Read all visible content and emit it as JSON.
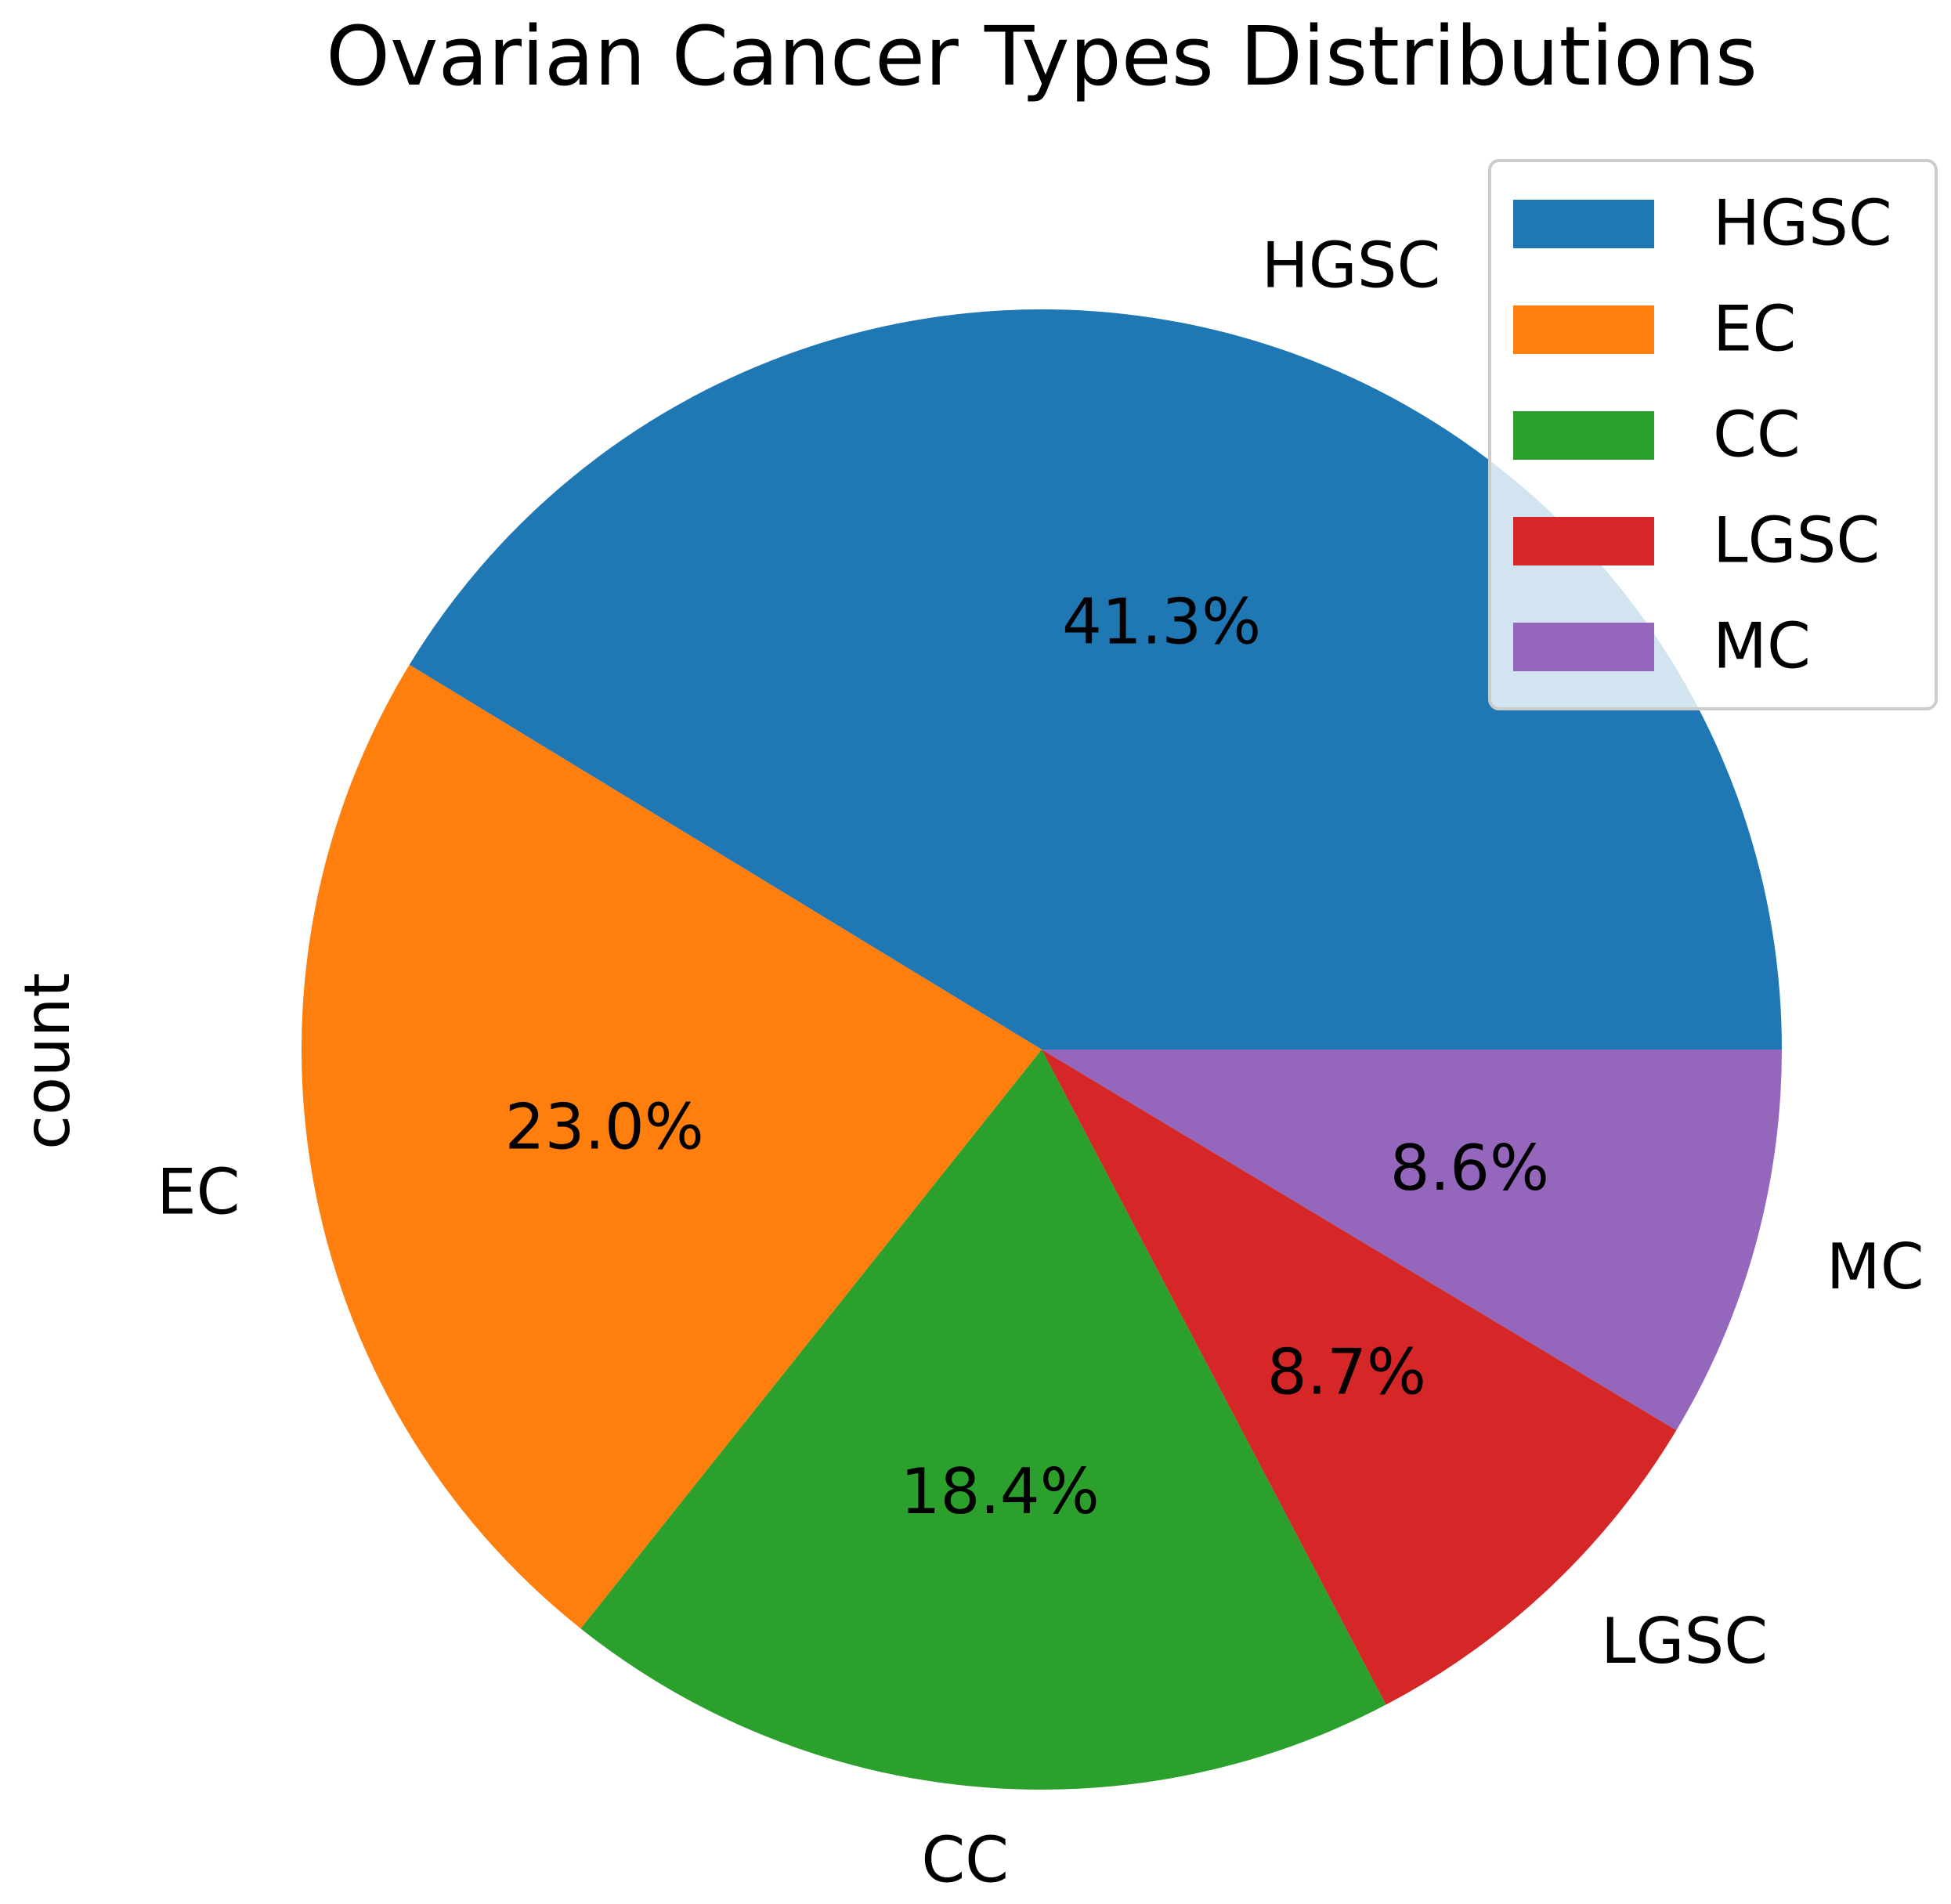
{
  "chart_data": {
    "type": "pie",
    "title": "Ovarian Cancer Types Distributions",
    "ylabel": "count",
    "categories": [
      "HGSC",
      "EC",
      "CC",
      "LGSC",
      "MC"
    ],
    "values": [
      41.3,
      23.0,
      18.4,
      8.7,
      8.6
    ],
    "percent_labels": [
      "41.3%",
      "23.0%",
      "18.4%",
      "8.7%",
      "8.6%"
    ],
    "colors": [
      "#1f77b4",
      "#ff7f0e",
      "#2ca02c",
      "#d62728",
      "#9467bd"
    ],
    "start_angle": 0,
    "direction": "counterclockwise",
    "legend": {
      "placement": "top-right",
      "entries": [
        "HGSC",
        "EC",
        "CC",
        "LGSC",
        "MC"
      ]
    }
  }
}
